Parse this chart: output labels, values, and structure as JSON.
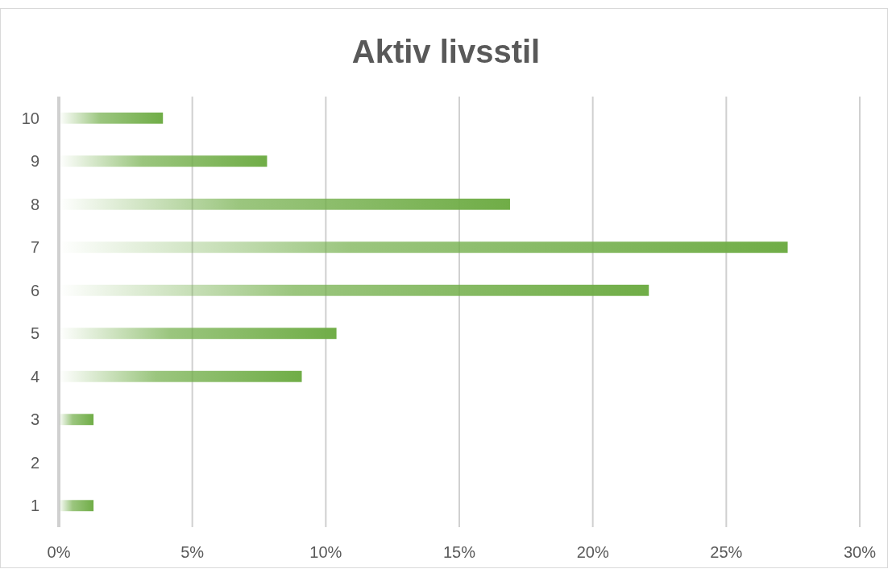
{
  "chart_data": {
    "type": "bar",
    "orientation": "horizontal",
    "title": "Aktiv livsstil",
    "categories": [
      "10",
      "9",
      "8",
      "7",
      "6",
      "5",
      "4",
      "3",
      "2",
      "1"
    ],
    "values": [
      3.9,
      7.8,
      16.9,
      27.3,
      22.1,
      10.4,
      9.1,
      1.3,
      0,
      1.3
    ],
    "color": "#70ad47",
    "xlim": [
      0,
      30
    ],
    "xticks": [
      {
        "value": 0,
        "label": "0%"
      },
      {
        "value": 5,
        "label": "5%"
      },
      {
        "value": 10,
        "label": "10%"
      },
      {
        "value": 15,
        "label": "15%"
      },
      {
        "value": 20,
        "label": "20%"
      },
      {
        "value": 25,
        "label": "25%"
      },
      {
        "value": 30,
        "label": "30%"
      }
    ],
    "grid": "x"
  }
}
